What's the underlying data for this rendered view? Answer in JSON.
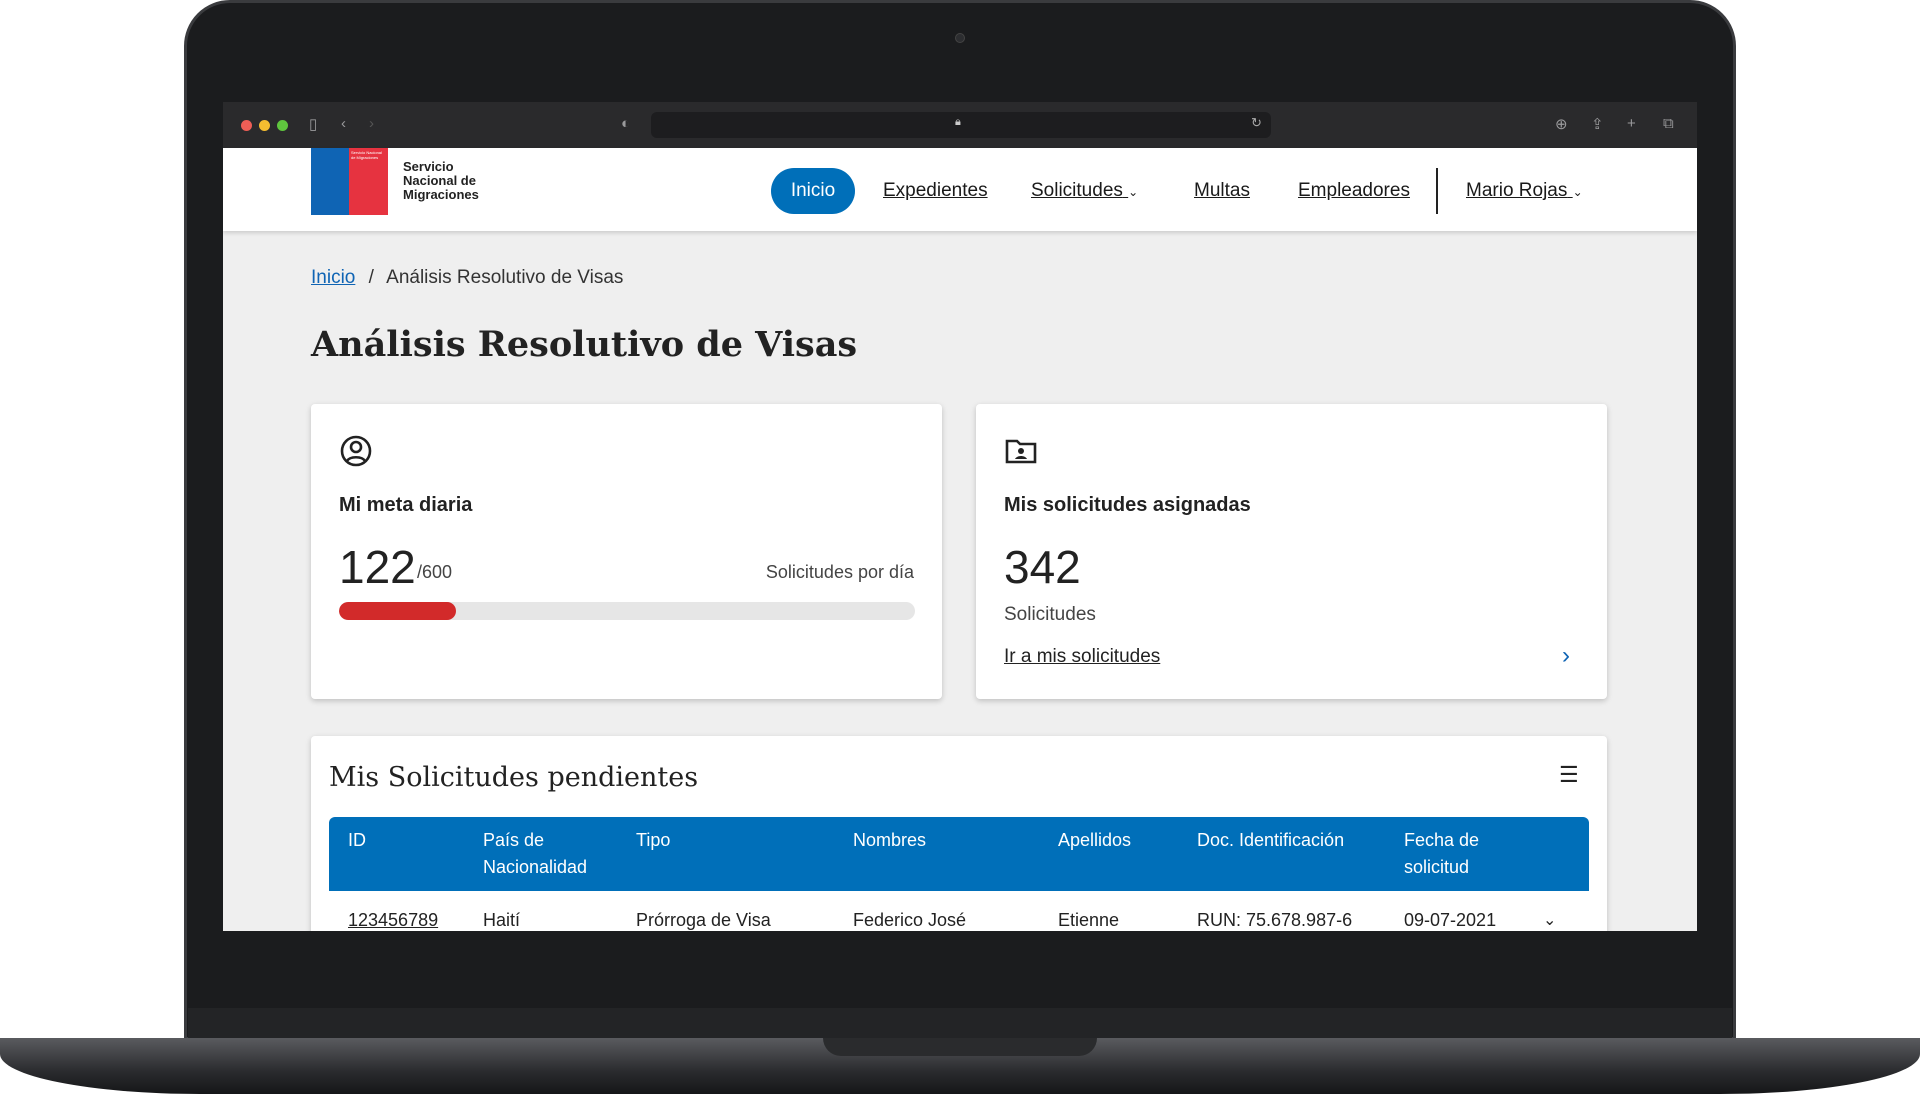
{
  "header": {
    "logo_text": "Servicio Nacional de Migraciones",
    "nav": [
      {
        "label": "Inicio",
        "active": true
      },
      {
        "label": "Expedientes"
      },
      {
        "label": "Solicitudes",
        "dropdown": true
      },
      {
        "label": "Multas"
      },
      {
        "label": "Empleadores"
      }
    ],
    "user": "Mario Rojas"
  },
  "breadcrumb": {
    "home": "Inicio",
    "sep": "/",
    "current": "Análisis Resolutivo de Visas"
  },
  "page_title": "Análisis Resolutivo de Visas",
  "goal_card": {
    "icon": "user-circle-icon",
    "title": "Mi meta diaria",
    "value": "122",
    "total": "/600",
    "unit": "Solicitudes por día",
    "progress_fraction": 0.2033,
    "progress_color": "#d22a2a"
  },
  "assigned_card": {
    "icon": "folder-user-icon",
    "title": "Mis solicitudes asignadas",
    "value": "342",
    "unit": "Solicitudes",
    "link": "Ir a mis solicitudes"
  },
  "pending": {
    "title": "Mis Solicitudes pendientes",
    "columns": [
      "ID",
      "País de Nacionalidad",
      "Tipo",
      "Nombres",
      "Apellidos",
      "Doc. Identificación",
      "Fecha de solicitud"
    ],
    "rows": [
      [
        "123456789",
        "Haití",
        "Prórroga de Visa",
        "Federico José",
        "Etienne",
        "RUN: 75.678.987-6",
        "09-07-2021"
      ]
    ]
  },
  "colors": {
    "primary": "#006fb9",
    "accent_red": "#d22a2a"
  }
}
